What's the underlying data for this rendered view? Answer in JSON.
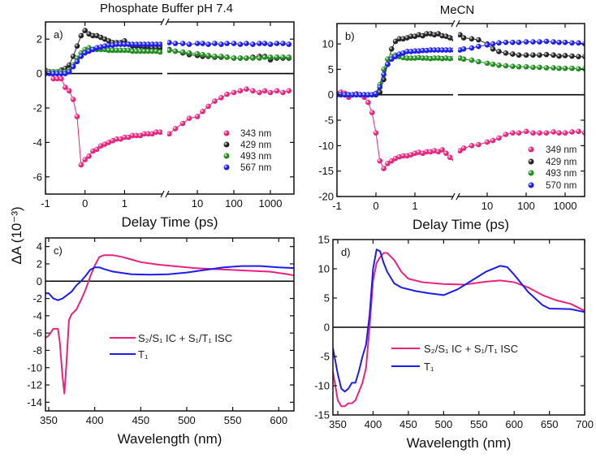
{
  "ylabel": "ΔA (10⁻³)",
  "colors": {
    "pink": "#e8237e",
    "black": "#222222",
    "green": "#1e8c1e",
    "blue": "#1c1cf0"
  },
  "chart_data": [
    {
      "id": "a",
      "type": "scatter",
      "panel_label": "a)",
      "title": "Phosphate Buffer pH 7.4",
      "xlabel": "Delay Time (ps)",
      "ylabel": "ΔA (10⁻³)",
      "ylim": [
        -7,
        3
      ],
      "xscale": "linear [-1,2] + broken log [1.7,3500]",
      "xticks": {
        "linear": [
          "-1",
          "0",
          "1"
        ],
        "log": [
          "10",
          "100",
          "1000"
        ]
      },
      "yticks": [
        "-6",
        "-4",
        "-2",
        "0",
        "2"
      ],
      "legend_position": "lower-right",
      "x_linear": [
        -1,
        -0.9,
        -0.8,
        -0.7,
        -0.6,
        -0.5,
        -0.4,
        -0.3,
        -0.2,
        -0.1,
        0,
        0.1,
        0.2,
        0.3,
        0.4,
        0.5,
        0.6,
        0.7,
        0.8,
        0.9,
        1.0,
        1.1,
        1.2,
        1.3,
        1.4,
        1.5,
        1.6,
        1.7,
        1.8,
        1.9,
        2.0
      ],
      "x_log": [
        1.7,
        2.5,
        4,
        6,
        10,
        14,
        20,
        30,
        45,
        65,
        100,
        150,
        220,
        330,
        500,
        700,
        1000,
        1500,
        2200,
        3200
      ],
      "series": [
        {
          "name": "343 nm",
          "color": "pink",
          "y_linear": [
            0.2,
            0.1,
            -0.3,
            -0.3,
            -0.3,
            -0.8,
            -1.0,
            -1.5,
            -2.5,
            -5.3,
            -5.0,
            -4.8,
            -4.5,
            -4.4,
            -4.2,
            -4.1,
            -4.0,
            -3.9,
            -3.8,
            -3.8,
            -3.7,
            -3.7,
            -3.6,
            -3.6,
            -3.6,
            -3.5,
            -3.5,
            -3.5,
            -3.4,
            -3.4,
            -3.45
          ],
          "y_log": [
            -3.5,
            -3.2,
            -2.9,
            -2.6,
            -2.5,
            -2.2,
            -1.9,
            -1.6,
            -1.4,
            -1.2,
            -1.1,
            -1.0,
            -0.9,
            -1.0,
            -1.1,
            -1.0,
            -1.1,
            -1.0,
            -1.1,
            -1.0
          ]
        },
        {
          "name": "429 nm",
          "color": "black",
          "y_linear": [
            0.1,
            0.1,
            0.1,
            0.1,
            0.2,
            0.3,
            0.5,
            1.0,
            1.6,
            2.2,
            2.5,
            2.3,
            2.2,
            2.2,
            2.1,
            2.0,
            1.9,
            1.8,
            1.8,
            1.8,
            1.9,
            1.7,
            1.6,
            1.6,
            1.6,
            1.55,
            1.55,
            1.5,
            1.5,
            1.5,
            1.5
          ],
          "y_log": [
            1.4,
            1.3,
            1.2,
            1.1,
            1.05,
            1.0,
            1.0,
            0.95,
            0.95,
            0.95,
            0.9,
            0.9,
            0.9,
            0.95,
            1.0,
            1.0,
            0.8,
            0.9,
            0.9,
            0.9
          ]
        },
        {
          "name": "493 nm",
          "color": "green",
          "y_linear": [
            0.1,
            0.1,
            0.1,
            0.1,
            0.1,
            0.1,
            0.2,
            0.5,
            0.9,
            1.2,
            1.4,
            1.5,
            1.4,
            1.4,
            1.4,
            1.4,
            1.35,
            1.35,
            1.35,
            1.35,
            1.35,
            1.35,
            1.3,
            1.3,
            1.3,
            1.3,
            1.3,
            1.3,
            1.3,
            1.25,
            1.25
          ],
          "y_log": [
            1.35,
            1.3,
            1.25,
            1.2,
            1.15,
            1.1,
            1.05,
            1.0,
            1.0,
            0.95,
            0.9,
            0.9,
            0.9,
            0.9,
            0.9,
            0.95,
            0.95,
            0.95,
            0.95,
            0.95
          ]
        },
        {
          "name": "567 nm",
          "color": "blue",
          "y_linear": [
            0,
            0,
            0,
            0,
            0,
            0,
            0.1,
            0.4,
            0.7,
            1.0,
            1.2,
            1.3,
            1.4,
            1.5,
            1.55,
            1.6,
            1.65,
            1.65,
            1.7,
            1.7,
            1.7,
            1.7,
            1.7,
            1.7,
            1.7,
            1.7,
            1.7,
            1.7,
            1.7,
            1.7,
            1.7
          ],
          "y_log": [
            1.8,
            1.75,
            1.75,
            1.7,
            1.75,
            1.75,
            1.7,
            1.75,
            1.7,
            1.75,
            1.75,
            1.7,
            1.75,
            1.7,
            1.75,
            1.75,
            1.7,
            1.75,
            1.75,
            1.7
          ]
        }
      ]
    },
    {
      "id": "b",
      "type": "scatter",
      "panel_label": "b)",
      "title": "MeCN",
      "xlabel": "Delay Time (ps)",
      "ylabel": "ΔA (10⁻³)",
      "ylim": [
        -20,
        14
      ],
      "xscale": "linear [-1,2] + broken log [2,3500]",
      "xticks": {
        "linear": [
          "-1",
          "0",
          "1"
        ],
        "log": [
          "10",
          "100",
          "1000"
        ]
      },
      "yticks": [
        "-20",
        "-15",
        "-10",
        "-5",
        "0",
        "5",
        "10"
      ],
      "legend_position": "lower-right",
      "x_linear": [
        -1,
        -0.9,
        -0.8,
        -0.7,
        -0.6,
        -0.5,
        -0.4,
        -0.3,
        -0.2,
        -0.1,
        0,
        0.1,
        0.2,
        0.3,
        0.4,
        0.5,
        0.6,
        0.7,
        0.8,
        0.9,
        1.0,
        1.1,
        1.2,
        1.3,
        1.4,
        1.5,
        1.6,
        1.7,
        1.8,
        1.9,
        2.0
      ],
      "x_log": [
        2,
        2.5,
        4,
        6,
        10,
        14,
        20,
        30,
        45,
        65,
        100,
        150,
        220,
        330,
        500,
        700,
        1000,
        1500,
        2200,
        3200
      ],
      "series": [
        {
          "name": "349 nm",
          "color": "pink",
          "y_linear": [
            0.3,
            0.5,
            0.3,
            -0.5,
            0,
            0.2,
            0,
            -0.5,
            -1.5,
            -3.5,
            -7.5,
            -13,
            -14.5,
            -13.5,
            -13,
            -12.5,
            -12.2,
            -12,
            -12,
            -11.8,
            -11.5,
            -11.3,
            -11.5,
            -11.2,
            -11.2,
            -11,
            -11.2,
            -10.8,
            -11.5,
            -12.3,
            -12.5
          ],
          "y_log": [
            -11,
            -10.5,
            -10,
            -9.8,
            -9.3,
            -9,
            -8.5,
            -7.8,
            -7.5,
            -7.5,
            -7.2,
            -7.5,
            -7.5,
            -7.5,
            -7.3,
            -7.5,
            -7.5,
            -7.3,
            -7.2,
            -7.5
          ]
        },
        {
          "name": "429 nm",
          "color": "black",
          "y_linear": [
            0,
            0,
            0,
            0,
            0,
            0,
            0,
            0,
            0,
            0,
            0,
            0.5,
            3,
            6,
            9,
            10.5,
            11,
            11,
            11.2,
            11.5,
            11.5,
            11.8,
            11.6,
            12,
            12,
            11.8,
            12,
            11.6,
            11.5,
            11.2,
            11
          ],
          "y_log": [
            11.8,
            11.2,
            11,
            10.8,
            10,
            9,
            8.5,
            8.2,
            8,
            7.8,
            7.8,
            7.8,
            7.8,
            7.9,
            7.8,
            7.6,
            7.7,
            7.6,
            7.5,
            7.5
          ]
        },
        {
          "name": "493 nm",
          "color": "green",
          "y_linear": [
            0,
            0,
            0,
            0,
            0,
            0,
            0,
            0,
            0,
            0,
            0.3,
            2,
            5,
            7,
            7.5,
            7.8,
            7.5,
            7.3,
            7.2,
            7.2,
            7.2,
            7.3,
            7.2,
            7.2,
            7.1,
            7.2,
            7.2,
            7.1,
            7.2,
            7.1,
            7.2
          ],
          "y_log": [
            7.2,
            7,
            6.8,
            6.5,
            6.2,
            6,
            5.8,
            5.7,
            5.6,
            5.5,
            5.5,
            5.4,
            5.4,
            5.3,
            5.3,
            5.2,
            5.2,
            5.2,
            5.1,
            5.1
          ]
        },
        {
          "name": "570 nm",
          "color": "blue",
          "y_linear": [
            0,
            0,
            0,
            0,
            0,
            0,
            0,
            0,
            0,
            0,
            0.2,
            1.5,
            4,
            6,
            7,
            7.5,
            8,
            8.2,
            8.5,
            8.5,
            8.6,
            8.6,
            8.7,
            8.7,
            8.8,
            8.8,
            8.8,
            8.8,
            8.8,
            8.8,
            8.8
          ],
          "y_log": [
            8.8,
            9,
            9.2,
            9.5,
            9.8,
            10,
            10.2,
            10.3,
            10.3,
            10.3,
            10.4,
            10.4,
            10.4,
            10.5,
            10.4,
            10.3,
            10.3,
            10.2,
            10.2,
            10
          ]
        }
      ]
    },
    {
      "id": "c",
      "type": "line",
      "panel_label": "c)",
      "xlabel": "Wavelength (nm)",
      "ylabel": "ΔA (10⁻³)",
      "ylim": [
        -15,
        5
      ],
      "xlim": [
        346,
        620
      ],
      "xticks": [
        "350",
        "400",
        "450",
        "500",
        "550",
        "600"
      ],
      "yticks": [
        "-14",
        "-12",
        "-10",
        "-8",
        "-6",
        "-4",
        "-2",
        "0",
        "2",
        "4"
      ],
      "legend_position": "center",
      "series": [
        {
          "name": "S₂/S₁ IC + S₁/T₁ ISC",
          "color": "pink",
          "x": [
            346,
            350,
            355,
            360,
            362,
            365,
            367,
            369,
            372,
            375,
            380,
            385,
            390,
            395,
            400,
            405,
            410,
            420,
            430,
            440,
            450,
            470,
            490,
            510,
            530,
            550,
            570,
            590,
            610,
            620
          ],
          "y": [
            -6.6,
            -6.3,
            -5.5,
            -5.5,
            -7,
            -11,
            -13,
            -10,
            -4.5,
            -3.8,
            -3.3,
            -2.2,
            -1,
            0.5,
            1.8,
            2.8,
            3.0,
            3.0,
            2.8,
            2.5,
            2.2,
            1.9,
            1.7,
            1.5,
            1.4,
            1.3,
            1.2,
            1.1,
            0.8,
            0.6
          ]
        },
        {
          "name": "T₁",
          "color": "blue",
          "x": [
            346,
            350,
            355,
            360,
            365,
            370,
            375,
            380,
            385,
            390,
            395,
            400,
            405,
            410,
            420,
            440,
            460,
            480,
            500,
            520,
            540,
            560,
            580,
            600,
            620
          ],
          "y": [
            -1.4,
            -1.4,
            -2.0,
            -2.2,
            -2.0,
            -1.6,
            -1.2,
            -0.5,
            0,
            0.6,
            1.3,
            1.6,
            1.6,
            1.4,
            1.1,
            0.8,
            0.75,
            0.8,
            1.0,
            1.3,
            1.6,
            1.75,
            1.75,
            1.6,
            1.5
          ]
        }
      ]
    },
    {
      "id": "d",
      "type": "line",
      "panel_label": "d)",
      "xlabel": "Wavelength (nm)",
      "ylabel": "ΔA (10⁻³)",
      "ylim": [
        -15,
        15
      ],
      "xlim": [
        343,
        700
      ],
      "xticks": [
        "350",
        "400",
        "450",
        "500",
        "550",
        "600",
        "650",
        "700"
      ],
      "yticks": [
        "-15",
        "-10",
        "-5",
        "0",
        "5",
        "10",
        "15"
      ],
      "legend_position": "center",
      "series": [
        {
          "name": "S₂/S₁ IC + S₁/T₁ ISC",
          "color": "pink",
          "x": [
            343,
            350,
            355,
            360,
            365,
            370,
            375,
            380,
            385,
            390,
            395,
            400,
            405,
            410,
            415,
            420,
            430,
            440,
            450,
            470,
            500,
            530,
            560,
            580,
            600,
            620,
            640,
            660,
            680,
            700
          ],
          "y": [
            -7.5,
            -12.5,
            -13.5,
            -13.5,
            -13,
            -13,
            -12.5,
            -11,
            -9.5,
            -7,
            0,
            8,
            11,
            12,
            12.7,
            12.7,
            11.5,
            9.5,
            8.3,
            7.7,
            7.4,
            7.3,
            7.8,
            8,
            7.7,
            6.8,
            5.5,
            4.6,
            4,
            2.8
          ]
        },
        {
          "name": "T₁",
          "color": "blue",
          "x": [
            343,
            350,
            355,
            360,
            365,
            370,
            375,
            380,
            385,
            390,
            395,
            400,
            405,
            410,
            415,
            420,
            430,
            440,
            460,
            480,
            500,
            520,
            540,
            560,
            580,
            590,
            600,
            610,
            620,
            640,
            650,
            680,
            700
          ],
          "y": [
            -3.5,
            -8,
            -10.5,
            -11,
            -10.5,
            -9.5,
            -9.5,
            -7.5,
            -5,
            -3,
            2,
            10,
            13.3,
            13,
            11,
            9.5,
            7.5,
            6.8,
            6.2,
            5.8,
            5.5,
            6.5,
            8,
            9.5,
            10.5,
            10.3,
            9,
            7.5,
            6,
            3.8,
            3.2,
            3.1,
            2.6
          ]
        }
      ]
    }
  ]
}
